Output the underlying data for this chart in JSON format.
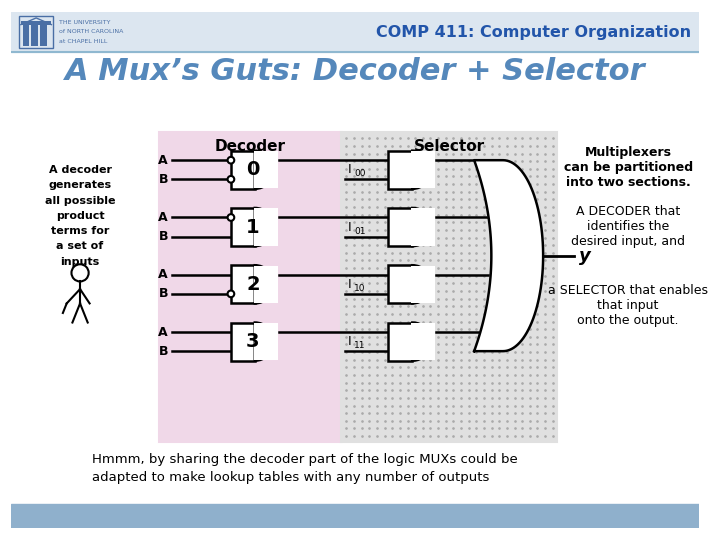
{
  "title": "A Mux’s Guts: Decoder + Selector",
  "header_text": "COMP 411: Computer Organization",
  "header_bg": "#dce6f0",
  "slide_bg": "#ffffff",
  "footer_bg": "#8fb0cc",
  "decoder_bg": "#f0d8e8",
  "selector_bg": "#e0e0e0",
  "decoder_label": "Decoder",
  "selector_label": "Selector",
  "gate_labels": [
    "0",
    "1",
    "2",
    "3"
  ],
  "i_labels": [
    "I",
    "I",
    "I",
    "I"
  ],
  "i_subs": [
    "00",
    "01",
    "10",
    "11"
  ],
  "output_label": "y",
  "left_text_lines": [
    "A decoder",
    "generates",
    "all possible",
    "product",
    "terms for",
    "a set of",
    "inputs"
  ],
  "right_text1_lines": [
    "Multiplexers",
    "can be partitioned",
    "into two sections."
  ],
  "right_text2_lines": [
    "A DECODER that",
    "identifies the",
    "desired input, and"
  ],
  "right_text3_lines": [
    "a SELECTOR that enables",
    "that input",
    "onto the output."
  ],
  "bottom_text_lines": [
    "Hmmm, by sharing the decoder part of the logic MUXs could be",
    "adapted to make lookup tables with any number of outputs"
  ],
  "univ_text": [
    "THE UNIVERSITY",
    "of NORTH CAROLINA",
    "at CHAPEL HILL"
  ],
  "gate_inputs": [
    {
      "A_bubble": true,
      "B_bubble": true
    },
    {
      "A_bubble": true,
      "B_bubble": false
    },
    {
      "A_bubble": false,
      "B_bubble": true
    },
    {
      "A_bubble": false,
      "B_bubble": false
    }
  ]
}
